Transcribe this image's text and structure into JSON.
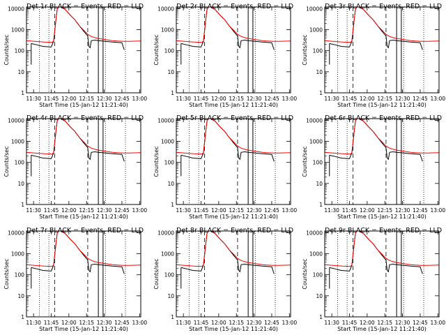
{
  "chart_data": {
    "type": "line",
    "layout": "3x3 grid of detector panels",
    "title_suffix": "BLACK = Events, RED = LLD",
    "xlabel": "Start Time (15-Jan-12 11:21:40)",
    "ylabel": "Counts/sec",
    "x_ticks": [
      "11:30",
      "11:45",
      "12:00",
      "12:15",
      "12:30",
      "12:45",
      "13:00"
    ],
    "xlim_minutes_after_1121": [
      3,
      100
    ],
    "y_scale": "log",
    "ylim": [
      1,
      12000
    ],
    "y_ticks": [
      "1",
      "10",
      "100",
      "1000",
      "10000"
    ],
    "series_colors": {
      "events": "#000000",
      "lld": "#ff0000"
    },
    "panels": [
      {
        "title": "Det 1r"
      },
      {
        "title": "Det 2r"
      },
      {
        "title": "Det 3r"
      },
      {
        "title": "Det 4r"
      },
      {
        "title": "Det 5r"
      },
      {
        "title": "Det 6r"
      },
      {
        "title": "Det 7r"
      },
      {
        "title": "Det 8r"
      },
      {
        "title": "Det 9r"
      }
    ],
    "markers": {
      "dotted_lines_min": [
        14,
        22,
        70,
        87
      ],
      "dashed_lines_min": [
        27,
        55
      ],
      "solid_lines_min": [
        64,
        68
      ]
    },
    "lld_shape": [
      [
        3,
        300
      ],
      [
        10,
        280
      ],
      [
        18,
        260
      ],
      [
        25,
        250
      ],
      [
        26,
        300
      ],
      [
        27,
        900
      ],
      [
        28,
        3000
      ],
      [
        29,
        9000
      ],
      [
        30,
        12000
      ],
      [
        33,
        12000
      ],
      [
        36,
        9000
      ],
      [
        40,
        5000
      ],
      [
        44,
        3000
      ],
      [
        48,
        1500
      ],
      [
        52,
        900
      ],
      [
        55,
        600
      ],
      [
        58,
        480
      ],
      [
        61,
        420
      ],
      [
        64,
        380
      ],
      [
        67,
        360
      ],
      [
        70,
        340
      ],
      [
        73,
        320
      ],
      [
        76,
        300
      ],
      [
        80,
        290
      ],
      [
        85,
        280
      ],
      [
        90,
        280
      ],
      [
        95,
        285
      ],
      [
        100,
        290
      ]
    ],
    "events_shape": [
      [
        7,
        220
      ],
      [
        12,
        190
      ],
      [
        17,
        160
      ],
      [
        24,
        150
      ],
      [
        26,
        280
      ],
      [
        27,
        900
      ],
      [
        28,
        3000
      ],
      [
        29,
        9000
      ],
      [
        30,
        12000
      ],
      [
        32,
        12000
      ],
      [
        36,
        9000
      ],
      [
        40,
        5000
      ],
      [
        44,
        3000
      ],
      [
        48,
        1500
      ],
      [
        52,
        800
      ],
      [
        55,
        500
      ],
      [
        56,
        160
      ],
      [
        57,
        140
      ],
      [
        58,
        300
      ],
      [
        61,
        320
      ],
      [
        64,
        300
      ],
      [
        67,
        290
      ],
      [
        70,
        280
      ],
      [
        73,
        270
      ],
      [
        76,
        260
      ],
      [
        80,
        250
      ],
      [
        84,
        240
      ],
      [
        86,
        110
      ]
    ]
  }
}
